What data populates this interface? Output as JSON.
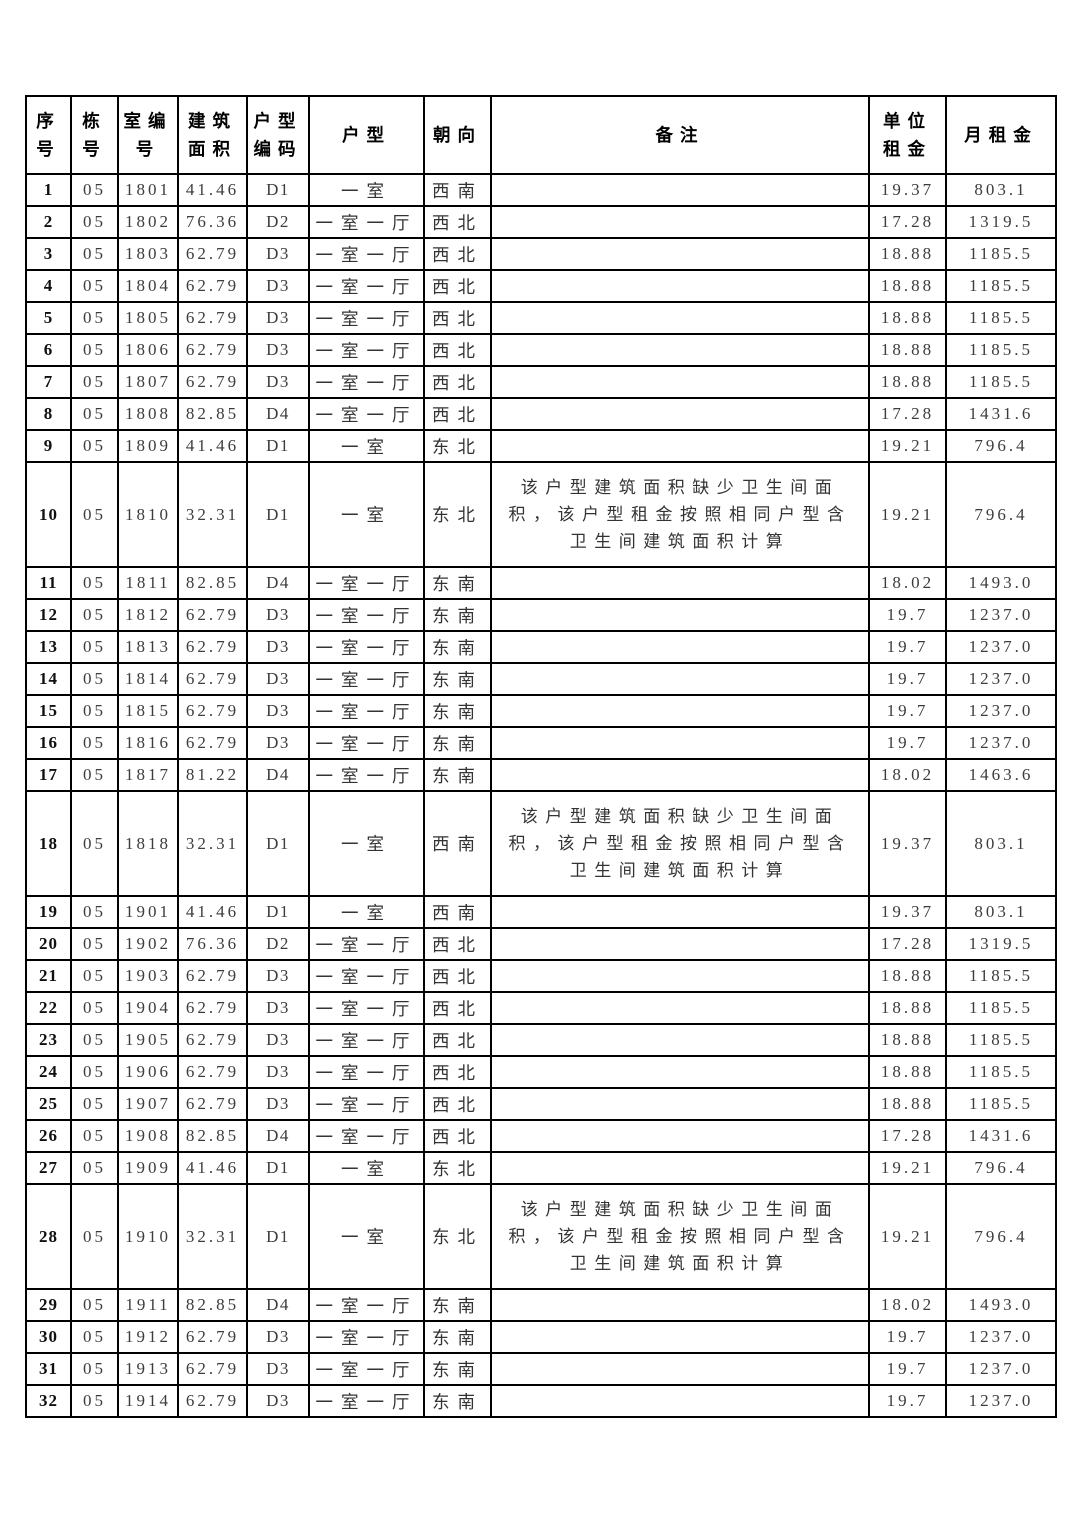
{
  "page": {
    "background": "#ffffff",
    "border_color": "#000000",
    "text_color": "#3c3c3c"
  },
  "table": {
    "columns": [
      {
        "key": "seq",
        "label": "序\n号"
      },
      {
        "key": "dong",
        "label": "栋\n号"
      },
      {
        "key": "room",
        "label": "室编\n号"
      },
      {
        "key": "area",
        "label": "建筑\n面积"
      },
      {
        "key": "code",
        "label": "户型\n编码"
      },
      {
        "key": "type",
        "label": "户型"
      },
      {
        "key": "facing",
        "label": "朝向"
      },
      {
        "key": "remark",
        "label": "备注"
      },
      {
        "key": "unit",
        "label": "单位\n租金"
      },
      {
        "key": "monthly",
        "label": "月租金"
      }
    ],
    "rows": [
      [
        "1",
        "05",
        "1801",
        "41.46",
        "D1",
        "一室",
        "西南",
        "",
        "19.37",
        "803.1"
      ],
      [
        "2",
        "05",
        "1802",
        "76.36",
        "D2",
        "一室一厅",
        "西北",
        "",
        "17.28",
        "1319.5"
      ],
      [
        "3",
        "05",
        "1803",
        "62.79",
        "D3",
        "一室一厅",
        "西北",
        "",
        "18.88",
        "1185.5"
      ],
      [
        "4",
        "05",
        "1804",
        "62.79",
        "D3",
        "一室一厅",
        "西北",
        "",
        "18.88",
        "1185.5"
      ],
      [
        "5",
        "05",
        "1805",
        "62.79",
        "D3",
        "一室一厅",
        "西北",
        "",
        "18.88",
        "1185.5"
      ],
      [
        "6",
        "05",
        "1806",
        "62.79",
        "D3",
        "一室一厅",
        "西北",
        "",
        "18.88",
        "1185.5"
      ],
      [
        "7",
        "05",
        "1807",
        "62.79",
        "D3",
        "一室一厅",
        "西北",
        "",
        "18.88",
        "1185.5"
      ],
      [
        "8",
        "05",
        "1808",
        "82.85",
        "D4",
        "一室一厅",
        "西北",
        "",
        "17.28",
        "1431.6"
      ],
      [
        "9",
        "05",
        "1809",
        "41.46",
        "D1",
        "一室",
        "东北",
        "",
        "19.21",
        "796.4"
      ],
      [
        "10",
        "05",
        "1810",
        "32.31",
        "D1",
        "一室",
        "东北",
        "该户型建筑面积缺少卫生间面积，该户型租金按照相同户型含卫生间建筑面积计算",
        "19.21",
        "796.4"
      ],
      [
        "11",
        "05",
        "1811",
        "82.85",
        "D4",
        "一室一厅",
        "东南",
        "",
        "18.02",
        "1493.0"
      ],
      [
        "12",
        "05",
        "1812",
        "62.79",
        "D3",
        "一室一厅",
        "东南",
        "",
        "19.7",
        "1237.0"
      ],
      [
        "13",
        "05",
        "1813",
        "62.79",
        "D3",
        "一室一厅",
        "东南",
        "",
        "19.7",
        "1237.0"
      ],
      [
        "14",
        "05",
        "1814",
        "62.79",
        "D3",
        "一室一厅",
        "东南",
        "",
        "19.7",
        "1237.0"
      ],
      [
        "15",
        "05",
        "1815",
        "62.79",
        "D3",
        "一室一厅",
        "东南",
        "",
        "19.7",
        "1237.0"
      ],
      [
        "16",
        "05",
        "1816",
        "62.79",
        "D3",
        "一室一厅",
        "东南",
        "",
        "19.7",
        "1237.0"
      ],
      [
        "17",
        "05",
        "1817",
        "81.22",
        "D4",
        "一室一厅",
        "东南",
        "",
        "18.02",
        "1463.6"
      ],
      [
        "18",
        "05",
        "1818",
        "32.31",
        "D1",
        "一室",
        "西南",
        "该户型建筑面积缺少卫生间面积，该户型租金按照相同户型含卫生间建筑面积计算",
        "19.37",
        "803.1"
      ],
      [
        "19",
        "05",
        "1901",
        "41.46",
        "D1",
        "一室",
        "西南",
        "",
        "19.37",
        "803.1"
      ],
      [
        "20",
        "05",
        "1902",
        "76.36",
        "D2",
        "一室一厅",
        "西北",
        "",
        "17.28",
        "1319.5"
      ],
      [
        "21",
        "05",
        "1903",
        "62.79",
        "D3",
        "一室一厅",
        "西北",
        "",
        "18.88",
        "1185.5"
      ],
      [
        "22",
        "05",
        "1904",
        "62.79",
        "D3",
        "一室一厅",
        "西北",
        "",
        "18.88",
        "1185.5"
      ],
      [
        "23",
        "05",
        "1905",
        "62.79",
        "D3",
        "一室一厅",
        "西北",
        "",
        "18.88",
        "1185.5"
      ],
      [
        "24",
        "05",
        "1906",
        "62.79",
        "D3",
        "一室一厅",
        "西北",
        "",
        "18.88",
        "1185.5"
      ],
      [
        "25",
        "05",
        "1907",
        "62.79",
        "D3",
        "一室一厅",
        "西北",
        "",
        "18.88",
        "1185.5"
      ],
      [
        "26",
        "05",
        "1908",
        "82.85",
        "D4",
        "一室一厅",
        "西北",
        "",
        "17.28",
        "1431.6"
      ],
      [
        "27",
        "05",
        "1909",
        "41.46",
        "D1",
        "一室",
        "东北",
        "",
        "19.21",
        "796.4"
      ],
      [
        "28",
        "05",
        "1910",
        "32.31",
        "D1",
        "一室",
        "东北",
        "该户型建筑面积缺少卫生间面积，该户型租金按照相同户型含卫生间建筑面积计算",
        "19.21",
        "796.4"
      ],
      [
        "29",
        "05",
        "1911",
        "82.85",
        "D4",
        "一室一厅",
        "东南",
        "",
        "18.02",
        "1493.0"
      ],
      [
        "30",
        "05",
        "1912",
        "62.79",
        "D3",
        "一室一厅",
        "东南",
        "",
        "19.7",
        "1237.0"
      ],
      [
        "31",
        "05",
        "1913",
        "62.79",
        "D3",
        "一室一厅",
        "东南",
        "",
        "19.7",
        "1237.0"
      ],
      [
        "32",
        "05",
        "1914",
        "62.79",
        "D3",
        "一室一厅",
        "东南",
        "",
        "19.7",
        "1237.0"
      ]
    ]
  }
}
